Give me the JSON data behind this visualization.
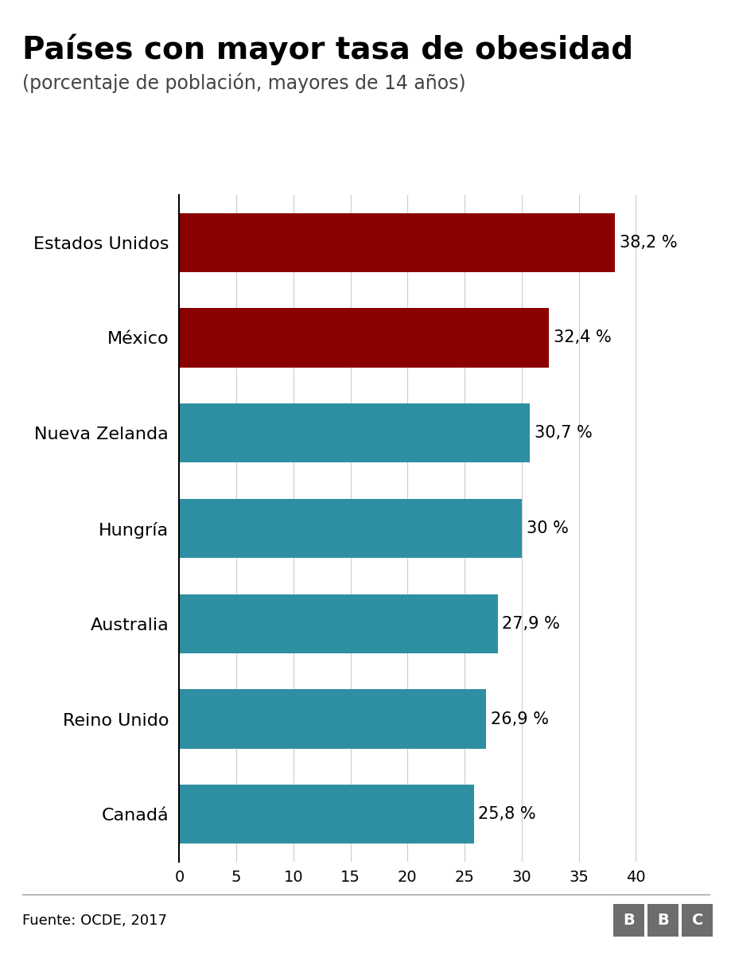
{
  "title": "Países con mayor tasa de obesidad",
  "subtitle": "(porcentaje de población, mayores de 14 años)",
  "categories": [
    "Canadá",
    "Reino Unido",
    "Australia",
    "Hungría",
    "Nueva Zelanda",
    "México",
    "Estados Unidos"
  ],
  "values": [
    25.8,
    26.9,
    27.9,
    30.0,
    30.7,
    32.4,
    38.2
  ],
  "bar_colors": [
    "#2e8fa3",
    "#2e8fa3",
    "#2e8fa3",
    "#2e8fa3",
    "#2e8fa3",
    "#8b0000",
    "#8b0000"
  ],
  "labels": [
    "25,8 %",
    "26,9 %",
    "27,9 %",
    "30 %",
    "30,7 %",
    "32,4 %",
    "38,2 %"
  ],
  "xlim": [
    0,
    42
  ],
  "xticks": [
    0,
    5,
    10,
    15,
    20,
    25,
    30,
    35,
    40
  ],
  "source_text": "Fuente: OCDE, 2017",
  "background_color": "#ffffff",
  "grid_color": "#cccccc",
  "title_fontsize": 28,
  "subtitle_fontsize": 17,
  "label_fontsize": 15,
  "ytick_fontsize": 16,
  "xtick_fontsize": 14,
  "source_fontsize": 13,
  "bbc_fontsize": 14
}
